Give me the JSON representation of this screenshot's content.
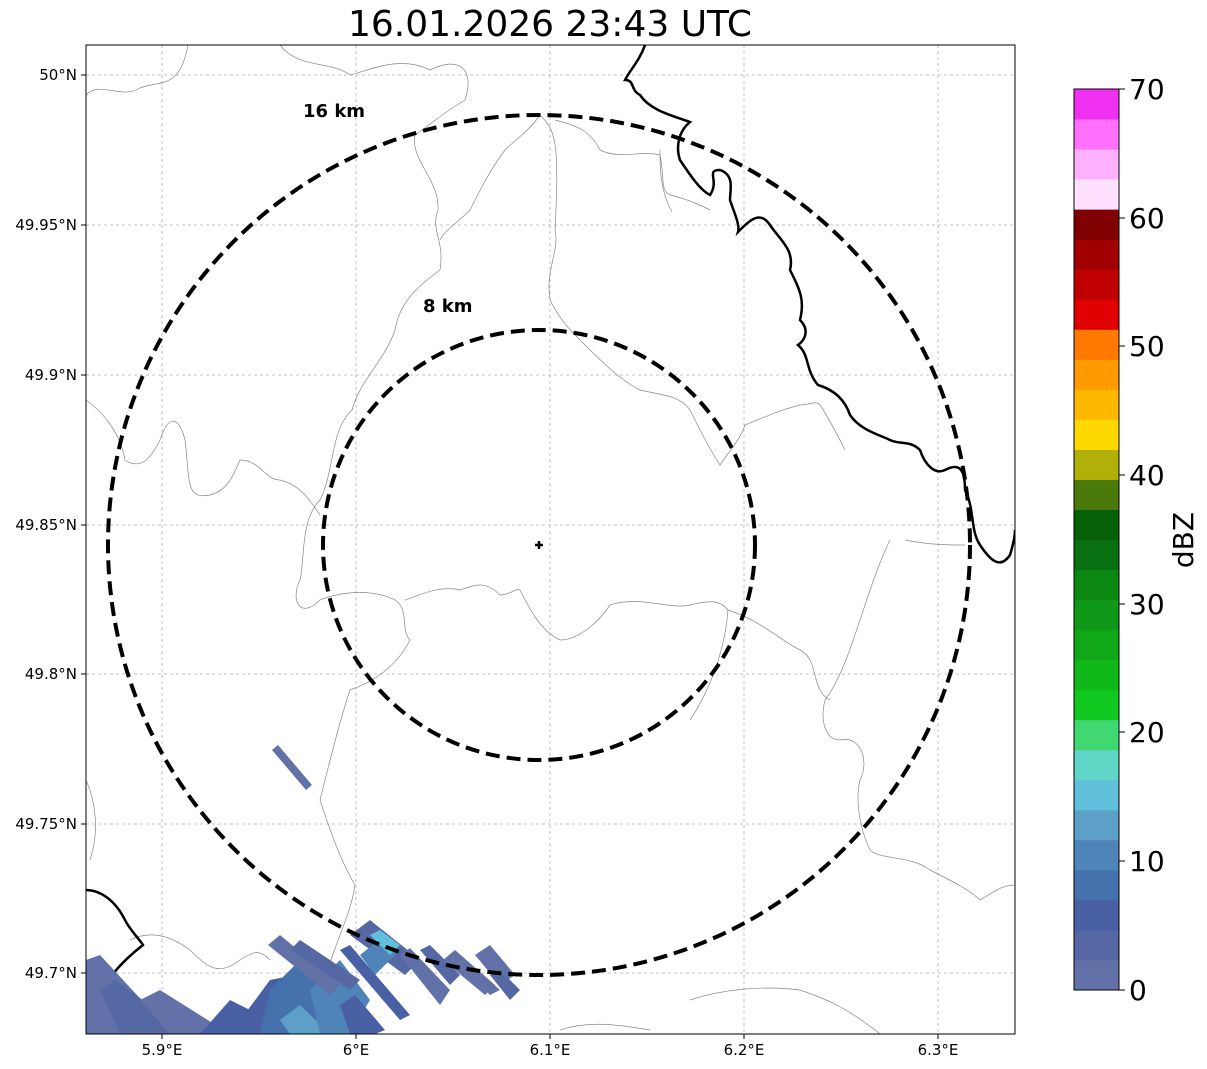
{
  "title": "16.01.2026 23:43 UTC",
  "lat_ticks": [
    "50°N",
    "49.95°N",
    "49.9°N",
    "49.85°N",
    "49.8°N",
    "49.75°N",
    "49.7°N"
  ],
  "lon_ticks": [
    "5.9°E",
    "6°E",
    "6.1°E",
    "6.2°E",
    "6.3°E"
  ],
  "rings": [
    {
      "label": "16 km",
      "radius_km": 16
    },
    {
      "label": "8 km",
      "radius_km": 8
    }
  ],
  "colorbar": {
    "label": "dBZ",
    "ticks": [
      "0",
      "10",
      "20",
      "30",
      "40",
      "50",
      "60",
      "70"
    ],
    "colors": [
      "#6272a8",
      "#5668a3",
      "#4a60a5",
      "#4572ad",
      "#4f84b8",
      "#5ca0c8",
      "#60c0dc",
      "#60d6c6",
      "#40d870",
      "#10c820",
      "#10b81a",
      "#10a816",
      "#109818",
      "#0a8812",
      "#087010",
      "#066008",
      "#4a7a0a",
      "#b0b008",
      "#ffd800",
      "#ffb800",
      "#ff9a00",
      "#ff7800",
      "#e00000",
      "#c00000",
      "#a00000",
      "#800000",
      "#ffe0ff",
      "#ffb0ff",
      "#ff70ff",
      "#f030f0"
    ]
  },
  "chart_data": {
    "type": "map",
    "title": "16.01.2026 23:43 UTC",
    "xlim": [
      5.86,
      6.34
    ],
    "ylim": [
      49.68,
      50.01
    ],
    "radar_site": {
      "lon": 6.095,
      "lat": 49.843
    },
    "colorbar_range": [
      0,
      70
    ],
    "colorbar_unit": "dBZ"
  }
}
